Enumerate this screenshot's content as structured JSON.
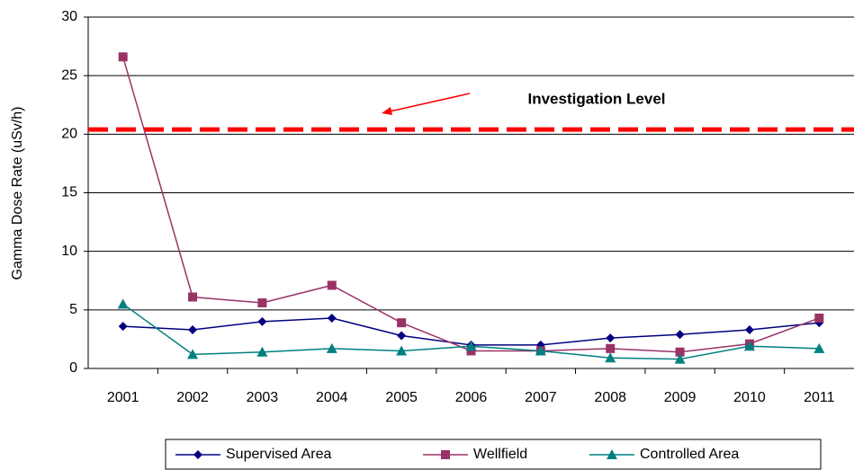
{
  "chart_data": {
    "type": "line",
    "y_label": "Gamma Dose Rate (uSv/h)",
    "categories": [
      "2001",
      "2002",
      "2003",
      "2004",
      "2005",
      "2006",
      "2007",
      "2008",
      "2009",
      "2010",
      "2011"
    ],
    "series": [
      {
        "name": "Supervised Area",
        "color": "#000080",
        "marker": "diamond",
        "values": [
          3.6,
          3.3,
          4.0,
          4.3,
          2.8,
          2.0,
          2.0,
          2.6,
          2.9,
          3.3,
          3.9
        ]
      },
      {
        "name": "Wellfield",
        "color": "#993366",
        "marker": "square",
        "values": [
          26.6,
          6.1,
          5.6,
          7.1,
          3.9,
          1.5,
          1.5,
          1.7,
          1.4,
          2.1,
          4.3
        ]
      },
      {
        "name": "Controlled Area",
        "color": "#008080",
        "marker": "triangle",
        "values": [
          5.5,
          1.2,
          1.4,
          1.7,
          1.5,
          1.9,
          1.5,
          0.9,
          0.8,
          1.9,
          1.7
        ]
      }
    ],
    "reference_line": {
      "value": 20.4,
      "label": "Investigation Level",
      "color": "#ff0000"
    },
    "ylim": [
      0,
      30
    ],
    "yticks": [
      0,
      5,
      10,
      15,
      20,
      25,
      30
    ],
    "grid": true
  }
}
